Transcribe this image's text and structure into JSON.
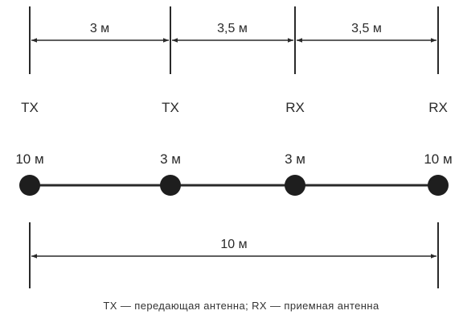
{
  "top_dimensions": [
    "3 м",
    "3,5 м",
    "3,5 м"
  ],
  "antenna_roles": [
    "TX",
    "TX",
    "RX",
    "RX"
  ],
  "antenna_distances": [
    "10 м",
    "3 м",
    "3 м",
    "10 м"
  ],
  "bottom_dimension": "10 м",
  "caption": "TX — передающая антенна; RX — приемная антенна",
  "colors": {
    "line": "#2a2a2a",
    "node": "#1e1e1e",
    "text": "#2a2a2a"
  }
}
